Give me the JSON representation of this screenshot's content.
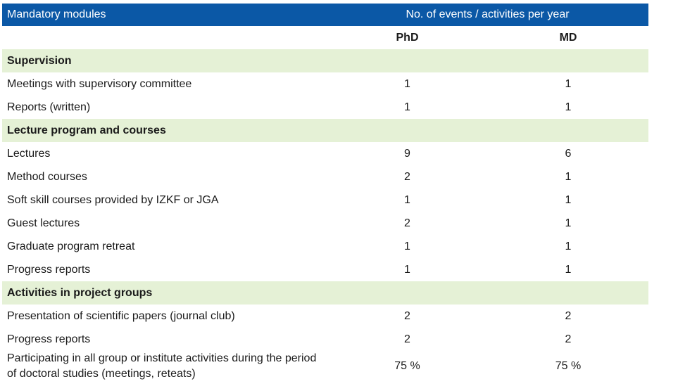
{
  "header": {
    "title": "Mandatory modules",
    "span_label": "No. of events / activities per year",
    "col_phd": "PhD",
    "col_md": "MD"
  },
  "sections": [
    {
      "label": "Supervision",
      "rows": [
        {
          "label": "Meetings with supervisory committee",
          "phd": "1",
          "md": "1"
        },
        {
          "label": "Reports (written)",
          "phd": "1",
          "md": "1"
        }
      ]
    },
    {
      "label": "Lecture program and courses",
      "rows": [
        {
          "label": "Lectures",
          "phd": "9",
          "md": "6"
        },
        {
          "label": "Method courses",
          "phd": "2",
          "md": "1"
        },
        {
          "label": "Soft skill courses provided by IZKF or JGA",
          "phd": "1",
          "md": "1"
        },
        {
          "label": "Guest lectures",
          "phd": "2",
          "md": "1"
        },
        {
          "label": "Graduate program retreat",
          "phd": "1",
          "md": "1"
        },
        {
          "label": "Progress reports",
          "phd": "1",
          "md": "1"
        }
      ]
    },
    {
      "label": "Activities in project groups",
      "rows": [
        {
          "label": "Presentation of scientific papers (journal club)",
          "phd": "2",
          "md": "2"
        },
        {
          "label": "Progress reports",
          "phd": "2",
          "md": "2"
        },
        {
          "label": "Participating in all group or institute activities during the period of doctoral studies (meetings, reteats)",
          "phd": "75 %",
          "md": "75 %"
        }
      ]
    }
  ]
}
